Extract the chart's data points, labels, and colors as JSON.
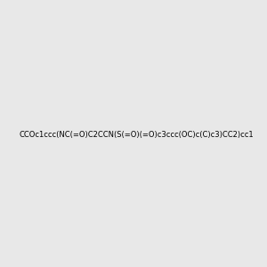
{
  "smiles": "CCOc1ccc(NC(=O)C2CCN(S(=O)(=O)c3ccc(OC)c(C)c3)CC2)cc1",
  "title": "",
  "bg_color": "#e8e8e8",
  "figsize": [
    3.0,
    3.0
  ],
  "dpi": 100
}
